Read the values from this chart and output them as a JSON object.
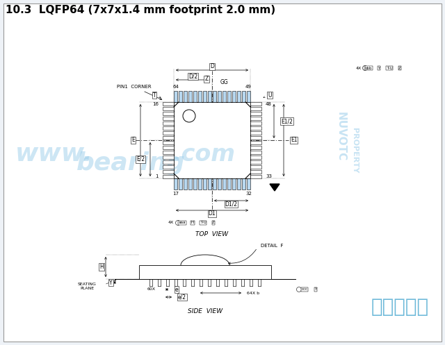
{
  "title": "10.3  LQFP64 (7x7x1.4 mm footprint 2.0 mm)",
  "title_fontsize": 11,
  "bg_color": "#eef2f7",
  "diagram_bg": "#ffffff",
  "line_color": "#000000",
  "watermark_color": "#90c8e8",
  "chinese_text": "深圳宏力捷",
  "chinese_color": "#6bb8d8",
  "top_view_label": "TOP  VIEW",
  "side_view_label": "SIDE  VIEW",
  "detail_label": "DETAIL  F",
  "pin1_label": "PIN1  CORNER",
  "seating_label": "SEATING\nPLANE"
}
